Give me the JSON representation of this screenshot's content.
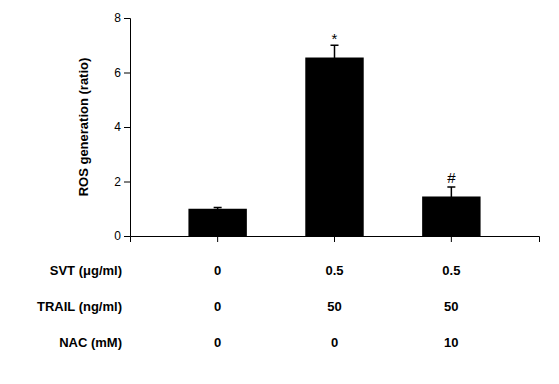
{
  "chart_data": {
    "type": "bar",
    "categories": [
      null,
      null,
      null
    ],
    "values": [
      1.0,
      6.55,
      1.45
    ],
    "errors": [
      0.05,
      0.45,
      0.35
    ],
    "color": "#000000",
    "ylim": [
      0,
      8
    ],
    "yticks": [
      0,
      2,
      4,
      6,
      8
    ],
    "ylabel": "ROS generation (ratio)",
    "annotations": [
      {
        "text": "*",
        "x": 1,
        "y": 7.05
      },
      {
        "text": "#",
        "x": 2,
        "y": 1.95
      }
    ],
    "table_rows": [
      {
        "label": "SVT (μg/ml)",
        "values": [
          "0",
          "0.5",
          "0.5"
        ]
      },
      {
        "label": "TRAIL (ng/ml)",
        "values": [
          "0",
          "50",
          "50"
        ]
      },
      {
        "label": "NAC (mM)",
        "values": [
          "0",
          "0",
          "10"
        ]
      }
    ]
  }
}
